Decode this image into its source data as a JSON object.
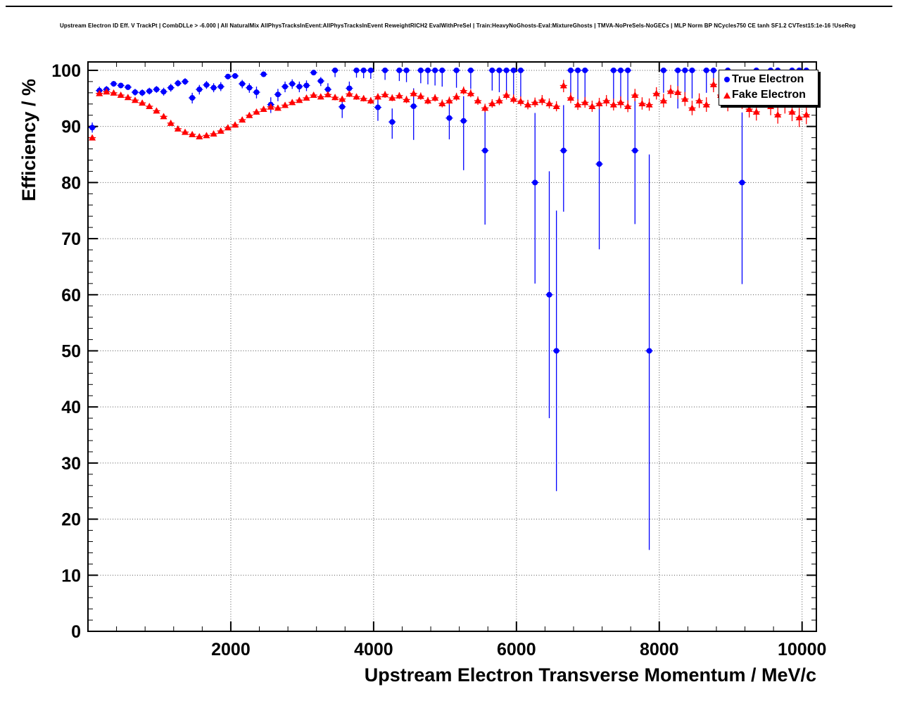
{
  "chart_data": {
    "type": "scatter",
    "title": "Upstream Electron ID Eff. V TrackPt | CombDLLe > -6.000 | All NaturalMix AllPhysTracksInEvent:AllPhysTracksInEvent ReweightRICH2 EvalWithPreSel | Train:HeavyNoGhosts-Eval:MixtureGhosts | TMVA-NoPreSels-NoGECs | MLP Norm BP NCycles750 CE tanh SF1.2 CVTest15:1e-16 !UseReg",
    "xlabel": "Upstream Electron Transverse Momentum / MeV/c",
    "ylabel": "Efficiency / %",
    "xlim": [
      0,
      10200
    ],
    "ylim": [
      0,
      101.5
    ],
    "x_ticks": [
      2000,
      4000,
      6000,
      8000,
      10000
    ],
    "y_ticks": [
      0,
      10,
      20,
      30,
      40,
      50,
      60,
      70,
      80,
      90,
      100
    ],
    "x_minor_step": 400,
    "y_minor_step": 2,
    "grid": true,
    "legend_position": "top-right",
    "x_half_bin": 50,
    "frame_color": "#000000",
    "grid_color": "#555555",
    "series": [
      {
        "name": "True Electron",
        "color": "#0000ff",
        "marker": "circle",
        "points": [
          [
            60,
            89.8,
            0.9,
            0.9
          ],
          [
            160,
            96.4,
            0.7,
            0.7
          ],
          [
            260,
            96.6,
            0.6,
            0.6
          ],
          [
            360,
            97.6,
            0.5,
            0.5
          ],
          [
            460,
            97.3,
            0.5,
            0.5
          ],
          [
            560,
            97.0,
            0.5,
            0.5
          ],
          [
            660,
            96.1,
            0.6,
            0.6
          ],
          [
            760,
            96.0,
            0.6,
            0.6
          ],
          [
            860,
            96.3,
            0.6,
            0.6
          ],
          [
            960,
            96.6,
            0.6,
            0.6
          ],
          [
            1060,
            96.2,
            0.7,
            0.7
          ],
          [
            1160,
            96.9,
            0.7,
            0.7
          ],
          [
            1260,
            97.7,
            0.6,
            0.6
          ],
          [
            1360,
            98.0,
            0.6,
            0.6
          ],
          [
            1460,
            95.1,
            1.0,
            0.9
          ],
          [
            1560,
            96.6,
            0.9,
            0.8
          ],
          [
            1660,
            97.4,
            0.7,
            0.7
          ],
          [
            1760,
            96.9,
            0.8,
            0.8
          ],
          [
            1860,
            97.1,
            0.8,
            0.8
          ],
          [
            1960,
            98.9,
            0.5,
            0.4
          ],
          [
            2060,
            99.0,
            0.5,
            0.4
          ],
          [
            2160,
            97.6,
            0.8,
            0.7
          ],
          [
            2260,
            96.9,
            0.9,
            0.8
          ],
          [
            2360,
            96.1,
            1.1,
            1.0
          ],
          [
            2460,
            99.3,
            0.5,
            0.4
          ],
          [
            2560,
            93.9,
            1.5,
            1.3
          ],
          [
            2660,
            95.7,
            1.2,
            1.0
          ],
          [
            2760,
            97.1,
            1.0,
            0.9
          ],
          [
            2860,
            97.6,
            0.9,
            0.8
          ],
          [
            2960,
            97.1,
            1.0,
            0.9
          ],
          [
            3060,
            97.3,
            1.0,
            0.9
          ],
          [
            3160,
            99.6,
            0.4,
            0.3
          ],
          [
            3260,
            98.1,
            0.9,
            0.7
          ],
          [
            3360,
            96.6,
            1.3,
            1.1
          ],
          [
            3460,
            100,
            1.2,
            0
          ],
          [
            3560,
            93.5,
            2.0,
            1.6
          ],
          [
            3660,
            96.8,
            1.4,
            1.2
          ],
          [
            3760,
            100,
            1.3,
            0
          ],
          [
            3860,
            100,
            1.4,
            0
          ],
          [
            3960,
            100,
            1.5,
            0
          ],
          [
            4060,
            93.4,
            2.4,
            1.9
          ],
          [
            4160,
            100,
            1.7,
            0
          ],
          [
            4260,
            90.8,
            3.0,
            2.4
          ],
          [
            4360,
            100,
            1.9,
            0
          ],
          [
            4460,
            100,
            2.1,
            0
          ],
          [
            4560,
            93.6,
            6.0,
            3.2
          ],
          [
            4660,
            100,
            2.3,
            0
          ],
          [
            4760,
            100,
            2.5,
            0
          ],
          [
            4860,
            100,
            2.7,
            0
          ],
          [
            4960,
            100,
            2.9,
            0
          ],
          [
            5060,
            91.5,
            3.8,
            2.9
          ],
          [
            5160,
            100,
            3.1,
            0
          ],
          [
            5260,
            91.0,
            8.8,
            4.4
          ],
          [
            5360,
            100,
            3.3,
            0
          ],
          [
            5560,
            85.7,
            13.2,
            7.4
          ],
          [
            5660,
            100,
            3.6,
            0
          ],
          [
            5760,
            100,
            3.9,
            0
          ],
          [
            5860,
            100,
            4.2,
            0
          ],
          [
            5960,
            100,
            4.5,
            0
          ],
          [
            6060,
            100,
            4.8,
            0
          ],
          [
            6260,
            80.0,
            18.0,
            12.4
          ],
          [
            6460,
            60.0,
            22.0,
            22.0
          ],
          [
            6560,
            50.0,
            25.0,
            25.0
          ],
          [
            6660,
            85.7,
            10.9,
            8.1
          ],
          [
            6760,
            100,
            5.2,
            0
          ],
          [
            6860,
            100,
            5.5,
            0
          ],
          [
            6960,
            100,
            5.8,
            0
          ],
          [
            7160,
            83.3,
            15.2,
            10.6
          ],
          [
            7360,
            100,
            6.2,
            0
          ],
          [
            7460,
            100,
            6.5,
            0
          ],
          [
            7560,
            100,
            6.8,
            0
          ],
          [
            7660,
            85.7,
            13.1,
            9.2
          ],
          [
            7860,
            50.0,
            35.5,
            35.0
          ],
          [
            8060,
            100,
            4.0,
            0
          ],
          [
            8260,
            100,
            6.8,
            0
          ],
          [
            8360,
            100,
            4.5,
            0
          ],
          [
            8460,
            100,
            5.0,
            0
          ],
          [
            8660,
            100,
            4.0,
            0
          ],
          [
            8760,
            100,
            3.5,
            0
          ],
          [
            8960,
            100,
            4.2,
            0
          ],
          [
            9160,
            80.0,
            18.1,
            12.5
          ],
          [
            9360,
            100,
            3.8,
            0
          ],
          [
            9560,
            100,
            4.6,
            0
          ],
          [
            9660,
            100,
            5.4,
            0
          ],
          [
            9860,
            100,
            4.9,
            0
          ],
          [
            9960,
            100,
            5.7,
            0
          ],
          [
            10060,
            100,
            6.1,
            0
          ]
        ]
      },
      {
        "name": "Fake Electron",
        "color": "#ff0000",
        "marker": "triangle",
        "points": [
          [
            60,
            88.0,
            0.4,
            0.4
          ],
          [
            160,
            95.9,
            0.4,
            0.4
          ],
          [
            260,
            96.2,
            0.35,
            0.35
          ],
          [
            360,
            96.0,
            0.35,
            0.35
          ],
          [
            460,
            95.6,
            0.35,
            0.35
          ],
          [
            560,
            95.2,
            0.4,
            0.4
          ],
          [
            660,
            94.7,
            0.4,
            0.4
          ],
          [
            760,
            94.2,
            0.4,
            0.4
          ],
          [
            860,
            93.6,
            0.4,
            0.4
          ],
          [
            960,
            92.8,
            0.4,
            0.4
          ],
          [
            1060,
            91.8,
            0.45,
            0.45
          ],
          [
            1160,
            90.6,
            0.45,
            0.45
          ],
          [
            1260,
            89.6,
            0.45,
            0.45
          ],
          [
            1360,
            89.0,
            0.45,
            0.45
          ],
          [
            1460,
            88.6,
            0.45,
            0.45
          ],
          [
            1560,
            88.2,
            0.45,
            0.45
          ],
          [
            1660,
            88.4,
            0.45,
            0.45
          ],
          [
            1760,
            88.7,
            0.45,
            0.45
          ],
          [
            1860,
            89.2,
            0.45,
            0.45
          ],
          [
            1960,
            89.8,
            0.45,
            0.45
          ],
          [
            2060,
            90.3,
            0.5,
            0.5
          ],
          [
            2160,
            91.2,
            0.5,
            0.5
          ],
          [
            2260,
            92.0,
            0.5,
            0.5
          ],
          [
            2360,
            92.6,
            0.5,
            0.5
          ],
          [
            2460,
            93.1,
            0.5,
            0.5
          ],
          [
            2560,
            93.5,
            0.5,
            0.5
          ],
          [
            2660,
            93.3,
            0.5,
            0.5
          ],
          [
            2760,
            93.8,
            0.5,
            0.5
          ],
          [
            2860,
            94.3,
            0.5,
            0.5
          ],
          [
            2960,
            94.7,
            0.5,
            0.5
          ],
          [
            3060,
            95.1,
            0.5,
            0.5
          ],
          [
            3160,
            95.6,
            0.5,
            0.5
          ],
          [
            3260,
            95.3,
            0.5,
            0.5
          ],
          [
            3360,
            95.7,
            0.5,
            0.5
          ],
          [
            3460,
            95.2,
            0.55,
            0.55
          ],
          [
            3560,
            94.9,
            0.55,
            0.55
          ],
          [
            3660,
            95.8,
            0.55,
            0.55
          ],
          [
            3760,
            95.3,
            0.55,
            0.55
          ],
          [
            3860,
            95.0,
            0.55,
            0.55
          ],
          [
            3960,
            94.6,
            0.6,
            0.6
          ],
          [
            4060,
            95.3,
            0.6,
            0.6
          ],
          [
            4160,
            95.7,
            0.6,
            0.6
          ],
          [
            4260,
            95.1,
            0.6,
            0.6
          ],
          [
            4360,
            95.5,
            0.6,
            0.6
          ],
          [
            4460,
            94.8,
            0.65,
            0.65
          ],
          [
            4560,
            95.9,
            0.65,
            0.65
          ],
          [
            4660,
            95.4,
            0.65,
            0.65
          ],
          [
            4760,
            94.6,
            0.65,
            0.65
          ],
          [
            4860,
            95.1,
            0.65,
            0.65
          ],
          [
            4960,
            94.1,
            0.7,
            0.7
          ],
          [
            5060,
            94.6,
            0.7,
            0.7
          ],
          [
            5160,
            95.3,
            0.7,
            0.7
          ],
          [
            5260,
            96.4,
            0.7,
            0.7
          ],
          [
            5360,
            95.9,
            0.7,
            0.7
          ],
          [
            5460,
            94.6,
            0.75,
            0.75
          ],
          [
            5560,
            93.3,
            0.75,
            0.75
          ],
          [
            5660,
            94.1,
            0.75,
            0.75
          ],
          [
            5760,
            94.6,
            0.8,
            0.8
          ],
          [
            5860,
            95.6,
            0.8,
            0.8
          ],
          [
            5960,
            94.9,
            0.8,
            0.8
          ],
          [
            6060,
            94.5,
            0.85,
            0.85
          ],
          [
            6160,
            93.9,
            0.85,
            0.85
          ],
          [
            6260,
            94.3,
            0.85,
            0.85
          ],
          [
            6360,
            94.7,
            0.9,
            0.9
          ],
          [
            6460,
            94.1,
            0.9,
            0.9
          ],
          [
            6560,
            93.6,
            0.9,
            0.9
          ],
          [
            6660,
            97.3,
            1.2,
            1.0
          ],
          [
            6760,
            95.1,
            0.95,
            0.95
          ],
          [
            6860,
            93.9,
            0.95,
            0.95
          ],
          [
            6960,
            94.3,
            0.95,
            0.95
          ],
          [
            7060,
            93.6,
            1.0,
            1.0
          ],
          [
            7160,
            94.1,
            1.0,
            1.0
          ],
          [
            7260,
            94.6,
            1.0,
            1.0
          ],
          [
            7360,
            93.9,
            1.05,
            1.05
          ],
          [
            7460,
            94.3,
            1.05,
            1.05
          ],
          [
            7560,
            93.6,
            1.05,
            1.05
          ],
          [
            7660,
            95.6,
            1.1,
            1.1
          ],
          [
            7760,
            94.1,
            1.1,
            1.1
          ],
          [
            7860,
            93.9,
            1.1,
            1.1
          ],
          [
            7960,
            95.9,
            1.1,
            1.1
          ],
          [
            8060,
            94.6,
            1.2,
            1.2
          ],
          [
            8160,
            96.3,
            1.2,
            1.1
          ],
          [
            8260,
            96.1,
            1.2,
            1.1
          ],
          [
            8360,
            94.9,
            1.25,
            1.25
          ],
          [
            8460,
            93.3,
            1.3,
            1.3
          ],
          [
            8560,
            94.6,
            1.3,
            1.3
          ],
          [
            8660,
            93.9,
            1.3,
            1.3
          ],
          [
            8760,
            97.5,
            1.4,
            1.1
          ],
          [
            8860,
            95.6,
            1.35,
            1.35
          ],
          [
            8960,
            94.1,
            1.4,
            1.4
          ],
          [
            9060,
            96.6,
            1.9,
            1.4
          ],
          [
            9160,
            94.6,
            1.5,
            1.5
          ],
          [
            9260,
            93.1,
            1.5,
            1.5
          ],
          [
            9360,
            92.6,
            1.55,
            1.55
          ],
          [
            9460,
            94.9,
            1.55,
            1.55
          ],
          [
            9560,
            93.6,
            1.6,
            1.6
          ],
          [
            9660,
            92.1,
            1.6,
            1.6
          ],
          [
            9760,
            93.9,
            1.6,
            1.6
          ],
          [
            9860,
            92.6,
            1.65,
            1.65
          ],
          [
            9960,
            91.6,
            1.7,
            1.7
          ],
          [
            10060,
            92.1,
            1.7,
            1.7
          ]
        ]
      }
    ]
  }
}
